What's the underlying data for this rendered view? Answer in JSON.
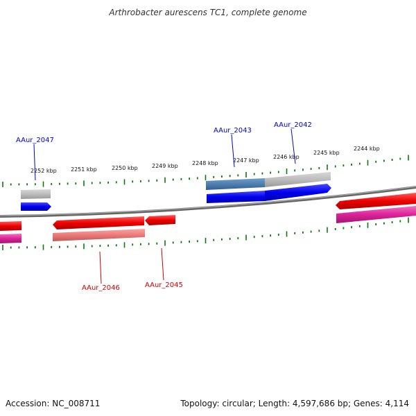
{
  "title": "Arthrobacter aurescens TC1, complete genome",
  "footer": {
    "accession": "Accession: NC_008711",
    "topology": "Topology: circular; Length: 4,597,686 bp; Genes: 4,114"
  },
  "scale": {
    "unit": "kbp",
    "labels": [
      "2252 kbp",
      "2251 kbp",
      "2250 kbp",
      "2249 kbp",
      "2248 kbp",
      "2247 kbp",
      "2246 kbp",
      "2245 kbp",
      "2244 kbp"
    ]
  },
  "genes": {
    "forward_labels": [
      "AAur_2047",
      "AAur_2043",
      "AAur_2042"
    ],
    "reverse_labels": [
      "AAur_2046",
      "AAur_2045"
    ]
  },
  "colors": {
    "backbone": "#808080",
    "tick": "#0a7a0a",
    "forward_gene": "#0000ee",
    "forward_label": "#0000cc",
    "reverse_gene": "#ee0000",
    "reverse_label": "#cc0000",
    "cds_grey": "#bbbbbb",
    "cds_steel": "#4f7fb0",
    "cds_pink": "#ee7a7a",
    "cds_magenta": "#dd2299"
  }
}
